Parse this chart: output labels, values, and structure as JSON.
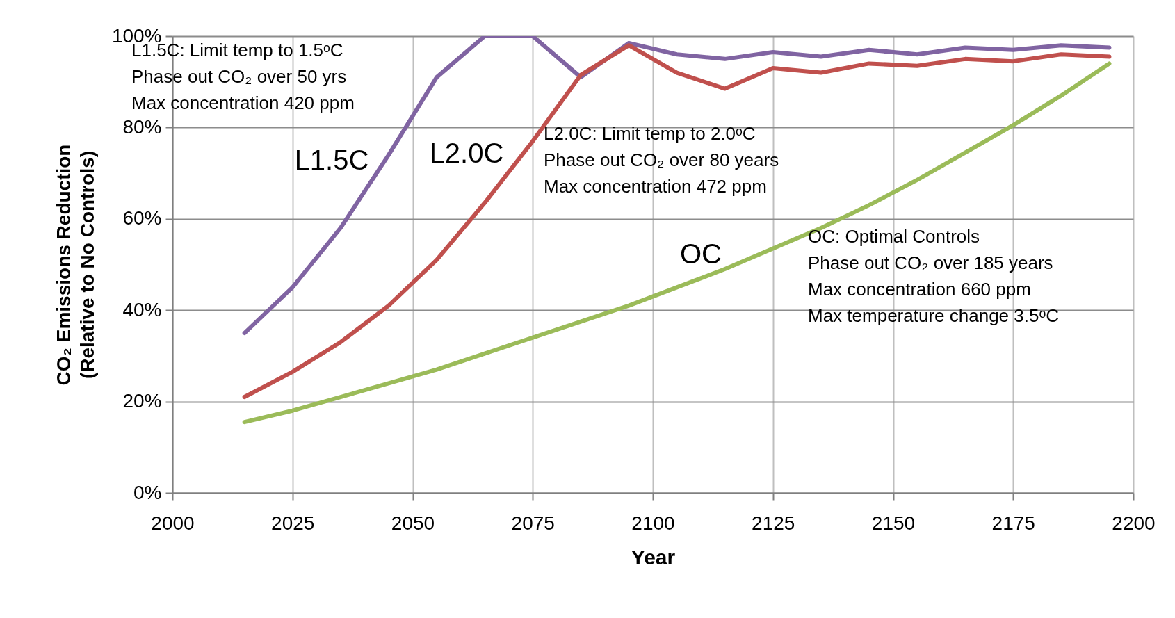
{
  "chart_data": {
    "type": "line",
    "xlabel": "Year",
    "ylabel": "CO₂ Emissions Reduction\n(Relative to No Controls)",
    "x": [
      2015,
      2025,
      2035,
      2045,
      2055,
      2065,
      2075,
      2085,
      2095,
      2105,
      2115,
      2125,
      2135,
      2145,
      2155,
      2165,
      2175,
      2185,
      2195
    ],
    "series": [
      {
        "name": "L1.5C",
        "color": "#8064a2",
        "values": [
          35,
          45,
          58,
          74,
          91,
          100,
          100,
          91,
          98.5,
          96,
          95,
          96.5,
          95.5,
          97,
          96,
          97.5,
          97,
          98,
          97.5
        ]
      },
      {
        "name": "L2.0C",
        "color": "#c0504d",
        "values": [
          21,
          26.5,
          33,
          41,
          51,
          63.5,
          77,
          91.5,
          98,
          92,
          88.5,
          93,
          92,
          94,
          93.5,
          95,
          94.5,
          96,
          95.5
        ]
      },
      {
        "name": "OC",
        "color": "#9bbb59",
        "values": [
          15.5,
          18,
          21,
          24,
          27,
          30.5,
          34,
          37.5,
          41,
          45,
          49,
          53.5,
          58,
          63,
          68.5,
          74.5,
          80.5,
          87,
          94
        ]
      }
    ],
    "xlim": [
      2000,
      2200
    ],
    "xticks": [
      2000,
      2025,
      2050,
      2075,
      2100,
      2125,
      2150,
      2175,
      2200
    ],
    "ylim": [
      0,
      100
    ],
    "yticks": [
      {
        "value": 0,
        "label": "0%"
      },
      {
        "value": 20,
        "label": "20%"
      },
      {
        "value": 40,
        "label": "40%"
      },
      {
        "value": 60,
        "label": "60%"
      },
      {
        "value": 80,
        "label": "80%"
      },
      {
        "value": 100,
        "label": "100%"
      }
    ],
    "grid": true,
    "marker": "none",
    "line_style": "solid",
    "annotations": [
      "L1.5C: Limit temp to 1.5ᵒC\nPhase out CO₂ over 50 yrs\nMax concentration 420 ppm",
      "L2.0C: Limit temp to 2.0ᵒC\nPhase out CO₂ over 80 years\nMax concentration 472 ppm",
      "OC: Optimal Controls\nPhase out CO₂ over 185 years\nMax concentration 660 ppm\nMax temperature change 3.5ᵒC"
    ]
  }
}
